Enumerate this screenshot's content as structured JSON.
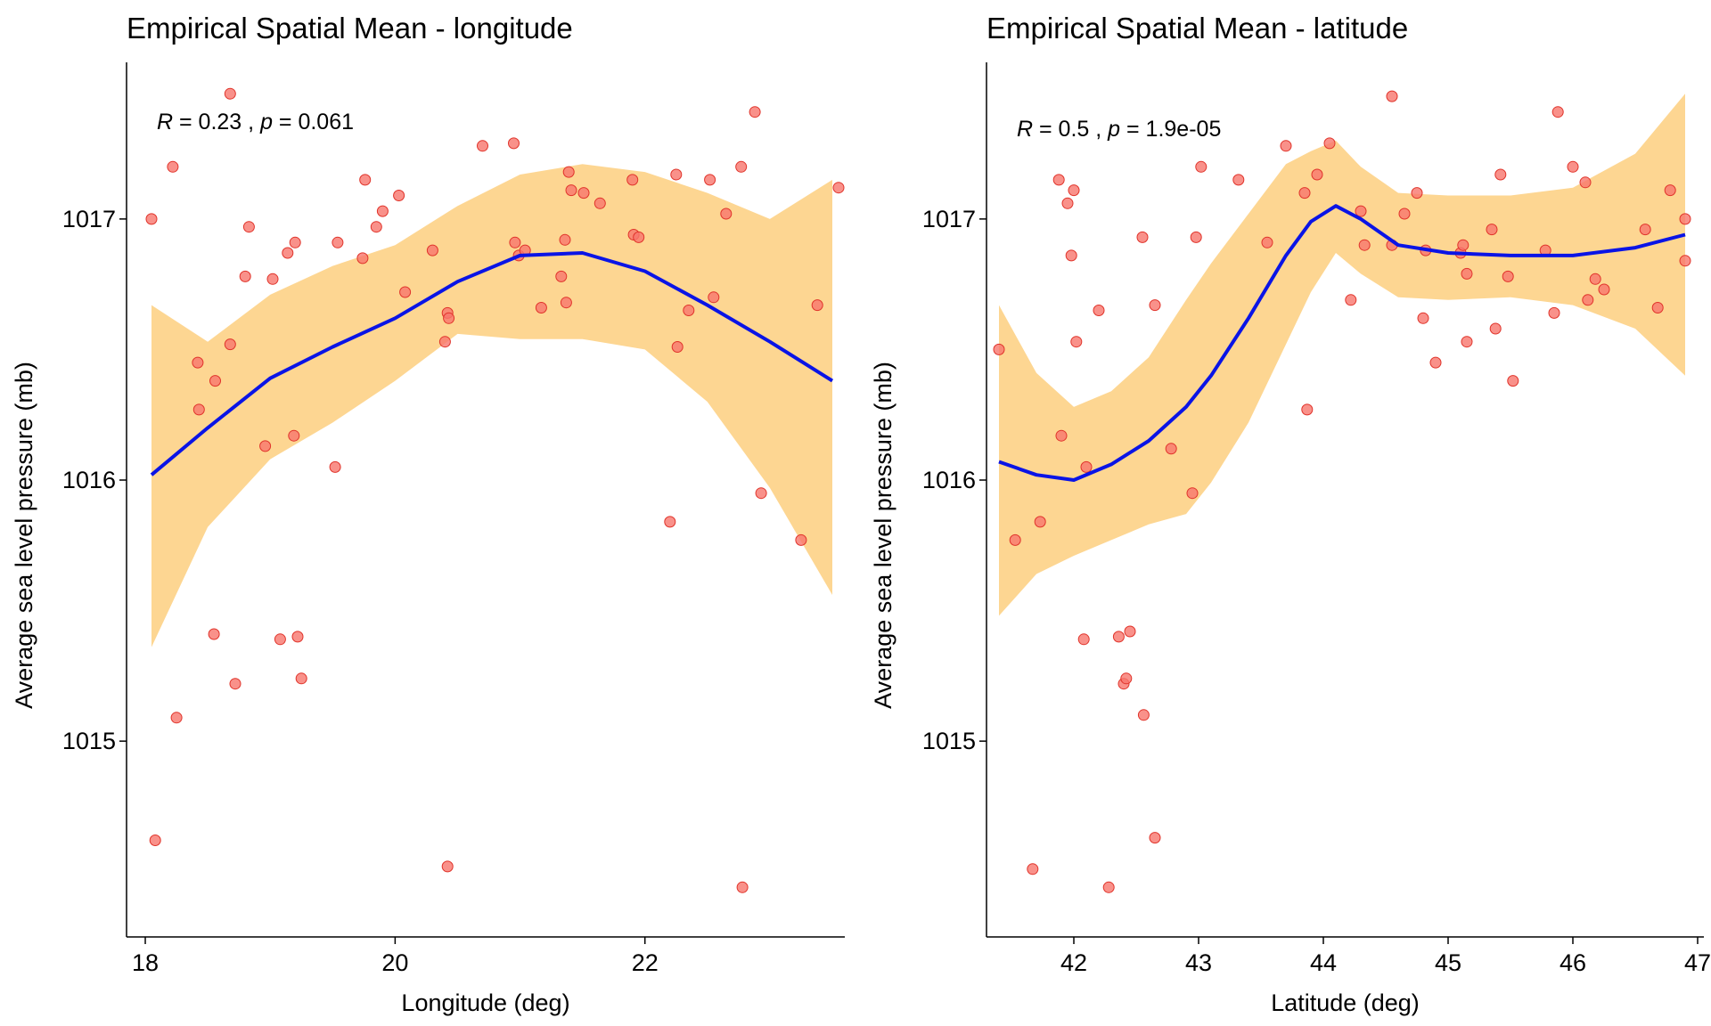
{
  "colors": {
    "points": "#f8766d",
    "points_stroke": "#e0332a",
    "ribbon": "#fdd692",
    "smooth": "#0a14e6",
    "axis": "#000000"
  },
  "chart_data": [
    {
      "type": "scatter",
      "title": "Empirical Spatial Mean - longitude",
      "xlabel": "Longitude (deg)",
      "ylabel": "Average sea level pressure (mb)",
      "xlim": [
        17.85,
        23.6
      ],
      "ylim": [
        1014.25,
        1017.6
      ],
      "xticks": [
        18,
        20,
        22
      ],
      "yticks": [
        1015,
        1016,
        1017
      ],
      "stat": {
        "r_sym": "R",
        "r_val": " = 0.23 , ",
        "p_sym": "p",
        "p_val": " = 0.061"
      },
      "grid": false,
      "points": [
        [
          18.05,
          1017.0
        ],
        [
          18.08,
          1014.62
        ],
        [
          18.22,
          1017.2
        ],
        [
          18.25,
          1015.09
        ],
        [
          18.42,
          1016.45
        ],
        [
          18.43,
          1016.27
        ],
        [
          18.55,
          1015.41
        ],
        [
          18.56,
          1016.38
        ],
        [
          18.68,
          1017.48
        ],
        [
          18.68,
          1016.52
        ],
        [
          18.72,
          1015.22
        ],
        [
          18.8,
          1016.78
        ],
        [
          18.83,
          1016.97
        ],
        [
          18.96,
          1016.13
        ],
        [
          19.02,
          1016.77
        ],
        [
          19.08,
          1015.39
        ],
        [
          19.14,
          1016.87
        ],
        [
          19.19,
          1016.17
        ],
        [
          19.2,
          1016.91
        ],
        [
          19.22,
          1015.4
        ],
        [
          19.25,
          1015.24
        ],
        [
          19.52,
          1016.05
        ],
        [
          19.54,
          1016.91
        ],
        [
          19.74,
          1016.85
        ],
        [
          19.76,
          1017.15
        ],
        [
          19.85,
          1016.97
        ],
        [
          19.9,
          1017.03
        ],
        [
          20.03,
          1017.09
        ],
        [
          20.08,
          1016.72
        ],
        [
          20.3,
          1016.88
        ],
        [
          20.4,
          1016.53
        ],
        [
          20.42,
          1016.64
        ],
        [
          20.43,
          1016.62
        ],
        [
          20.42,
          1014.52
        ],
        [
          20.7,
          1017.28
        ],
        [
          20.95,
          1017.29
        ],
        [
          20.96,
          1016.91
        ],
        [
          20.99,
          1016.86
        ],
        [
          21.04,
          1016.88
        ],
        [
          21.17,
          1016.66
        ],
        [
          21.33,
          1016.78
        ],
        [
          21.36,
          1016.92
        ],
        [
          21.37,
          1016.68
        ],
        [
          21.39,
          1017.18
        ],
        [
          21.41,
          1017.11
        ],
        [
          21.51,
          1017.1
        ],
        [
          21.64,
          1017.06
        ],
        [
          21.9,
          1017.15
        ],
        [
          21.91,
          1016.94
        ],
        [
          21.95,
          1016.93
        ],
        [
          22.2,
          1015.84
        ],
        [
          22.25,
          1017.17
        ],
        [
          22.26,
          1016.51
        ],
        [
          22.35,
          1016.65
        ],
        [
          22.52,
          1017.15
        ],
        [
          22.55,
          1016.7
        ],
        [
          22.65,
          1017.02
        ],
        [
          22.77,
          1017.2
        ],
        [
          22.78,
          1014.44
        ],
        [
          22.88,
          1017.41
        ],
        [
          22.93,
          1015.95
        ],
        [
          23.25,
          1015.77
        ],
        [
          23.38,
          1016.67
        ],
        [
          23.55,
          1017.12
        ]
      ],
      "smooth": {
        "x": [
          18.05,
          18.5,
          19.0,
          19.5,
          20.0,
          20.5,
          21.0,
          21.5,
          22.0,
          22.5,
          23.0,
          23.5
        ],
        "y": [
          1016.02,
          1016.2,
          1016.39,
          1016.51,
          1016.62,
          1016.76,
          1016.86,
          1016.87,
          1016.8,
          1016.67,
          1016.53,
          1016.38
        ],
        "lower": [
          1015.36,
          1015.82,
          1016.08,
          1016.22,
          1016.38,
          1016.56,
          1016.54,
          1016.54,
          1016.5,
          1016.3,
          1015.97,
          1015.56
        ],
        "upper": [
          1016.67,
          1016.53,
          1016.71,
          1016.82,
          1016.9,
          1017.05,
          1017.17,
          1017.21,
          1017.18,
          1017.1,
          1017.0,
          1017.15
        ]
      }
    },
    {
      "type": "scatter",
      "title": "Empirical Spatial Mean - latitude",
      "xlabel": "Latitude (deg)",
      "ylabel": "Average sea level pressure (mb)",
      "xlim": [
        41.3,
        47.05
      ],
      "ylim": [
        1014.25,
        1017.6
      ],
      "xticks": [
        42,
        43,
        44,
        45,
        46,
        47
      ],
      "yticks": [
        1015,
        1016,
        1017
      ],
      "stat": {
        "r_sym": "R",
        "r_val": " = 0.5 , ",
        "p_sym": "p",
        "p_val": " = 1.9e-05"
      },
      "grid": false,
      "points": [
        [
          41.4,
          1016.5
        ],
        [
          41.53,
          1015.77
        ],
        [
          41.67,
          1014.51
        ],
        [
          41.73,
          1015.84
        ],
        [
          41.88,
          1017.15
        ],
        [
          41.9,
          1016.17
        ],
        [
          41.95,
          1017.06
        ],
        [
          41.98,
          1016.86
        ],
        [
          42.0,
          1017.11
        ],
        [
          42.02,
          1016.53
        ],
        [
          42.08,
          1015.39
        ],
        [
          42.1,
          1016.05
        ],
        [
          42.2,
          1016.65
        ],
        [
          42.28,
          1014.44
        ],
        [
          42.36,
          1015.4
        ],
        [
          42.4,
          1015.22
        ],
        [
          42.42,
          1015.24
        ],
        [
          42.45,
          1015.42
        ],
        [
          42.55,
          1016.93
        ],
        [
          42.56,
          1015.1
        ],
        [
          42.65,
          1016.67
        ],
        [
          42.65,
          1014.63
        ],
        [
          42.78,
          1016.12
        ],
        [
          42.95,
          1015.95
        ],
        [
          42.98,
          1016.93
        ],
        [
          43.02,
          1017.2
        ],
        [
          43.32,
          1017.15
        ],
        [
          43.55,
          1016.91
        ],
        [
          43.7,
          1017.28
        ],
        [
          43.85,
          1017.1
        ],
        [
          43.87,
          1016.27
        ],
        [
          43.95,
          1017.17
        ],
        [
          44.05,
          1017.29
        ],
        [
          44.22,
          1016.69
        ],
        [
          44.3,
          1017.03
        ],
        [
          44.33,
          1016.9
        ],
        [
          44.55,
          1017.47
        ],
        [
          44.55,
          1016.9
        ],
        [
          44.65,
          1017.02
        ],
        [
          44.75,
          1017.1
        ],
        [
          44.8,
          1016.62
        ],
        [
          44.82,
          1016.88
        ],
        [
          44.9,
          1016.45
        ],
        [
          45.1,
          1016.87
        ],
        [
          45.12,
          1016.9
        ],
        [
          45.15,
          1016.53
        ],
        [
          45.15,
          1016.79
        ],
        [
          45.35,
          1016.96
        ],
        [
          45.38,
          1016.58
        ],
        [
          45.42,
          1017.17
        ],
        [
          45.48,
          1016.78
        ],
        [
          45.52,
          1016.38
        ],
        [
          45.78,
          1016.88
        ],
        [
          45.85,
          1016.64
        ],
        [
          45.88,
          1017.41
        ],
        [
          46.0,
          1017.2
        ],
        [
          46.1,
          1017.14
        ],
        [
          46.12,
          1016.69
        ],
        [
          46.18,
          1016.77
        ],
        [
          46.25,
          1016.73
        ],
        [
          46.58,
          1016.96
        ],
        [
          46.68,
          1016.66
        ],
        [
          46.78,
          1017.11
        ],
        [
          46.9,
          1017.0
        ],
        [
          46.9,
          1016.84
        ]
      ],
      "smooth": {
        "x": [
          41.4,
          41.7,
          42.0,
          42.3,
          42.6,
          42.9,
          43.1,
          43.4,
          43.7,
          43.9,
          44.1,
          44.3,
          44.6,
          45.0,
          45.5,
          46.0,
          46.5,
          46.9
        ],
        "y": [
          1016.07,
          1016.02,
          1016.0,
          1016.06,
          1016.15,
          1016.28,
          1016.4,
          1016.62,
          1016.86,
          1016.99,
          1017.05,
          1017.0,
          1016.9,
          1016.87,
          1016.86,
          1016.86,
          1016.89,
          1016.94
        ],
        "lower": [
          1015.48,
          1015.64,
          1015.71,
          1015.77,
          1015.83,
          1015.87,
          1015.99,
          1016.22,
          1016.52,
          1016.72,
          1016.87,
          1016.79,
          1016.7,
          1016.69,
          1016.7,
          1016.67,
          1016.58,
          1016.4
        ],
        "upper": [
          1016.67,
          1016.41,
          1016.28,
          1016.34,
          1016.47,
          1016.69,
          1016.83,
          1017.02,
          1017.21,
          1017.26,
          1017.3,
          1017.2,
          1017.1,
          1017.09,
          1017.09,
          1017.12,
          1017.25,
          1017.48
        ]
      }
    }
  ]
}
